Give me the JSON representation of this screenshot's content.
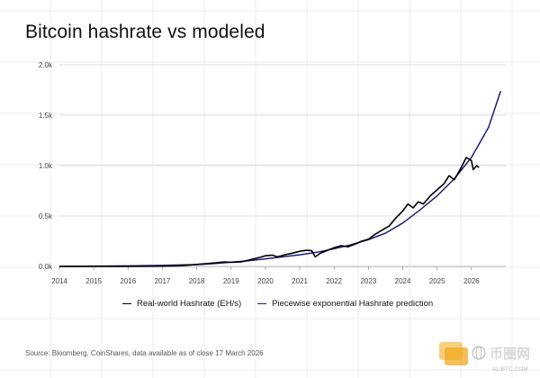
{
  "title": "Bitcoin hashrate vs modeled",
  "source": "Source: Bloomberg, CoinShares, data available as of close 17 March 2026",
  "watermark": {
    "brand": "币圈网",
    "url": "ALIBTC.COM"
  },
  "chart_data": {
    "type": "line",
    "xlim": [
      2014,
      2027
    ],
    "ylim": [
      0,
      2000
    ],
    "xticks": [
      "2014",
      "2015",
      "2016",
      "2017",
      "2018",
      "2019",
      "2020",
      "2021",
      "2022",
      "2023",
      "2024",
      "2025",
      "2026"
    ],
    "yticks": [
      "0.0k",
      "0.5k",
      "1.0k",
      "1.5k",
      "2.0k"
    ],
    "grid": true,
    "legend_position": "bottom",
    "series": [
      {
        "name": "Real-world Hashrate (EH/s)",
        "color": "#000000",
        "points": [
          [
            2014.0,
            0
          ],
          [
            2015.0,
            0.5
          ],
          [
            2016.0,
            1
          ],
          [
            2017.0,
            3
          ],
          [
            2017.5,
            6
          ],
          [
            2018.0,
            20
          ],
          [
            2018.4,
            30
          ],
          [
            2018.8,
            44
          ],
          [
            2019.0,
            40
          ],
          [
            2019.3,
            45
          ],
          [
            2019.6,
            70
          ],
          [
            2019.85,
            90
          ],
          [
            2020.0,
            105
          ],
          [
            2020.2,
            112
          ],
          [
            2020.35,
            95
          ],
          [
            2020.6,
            118
          ],
          [
            2020.8,
            132
          ],
          [
            2021.0,
            150
          ],
          [
            2021.2,
            160
          ],
          [
            2021.35,
            155
          ],
          [
            2021.45,
            95
          ],
          [
            2021.6,
            130
          ],
          [
            2021.85,
            165
          ],
          [
            2022.0,
            185
          ],
          [
            2022.2,
            205
          ],
          [
            2022.4,
            195
          ],
          [
            2022.6,
            220
          ],
          [
            2022.8,
            250
          ],
          [
            2023.0,
            270
          ],
          [
            2023.2,
            320
          ],
          [
            2023.4,
            360
          ],
          [
            2023.6,
            400
          ],
          [
            2023.8,
            480
          ],
          [
            2024.0,
            550
          ],
          [
            2024.15,
            620
          ],
          [
            2024.3,
            580
          ],
          [
            2024.45,
            640
          ],
          [
            2024.6,
            620
          ],
          [
            2024.8,
            700
          ],
          [
            2025.0,
            760
          ],
          [
            2025.2,
            820
          ],
          [
            2025.35,
            900
          ],
          [
            2025.5,
            860
          ],
          [
            2025.7,
            980
          ],
          [
            2025.85,
            1080
          ],
          [
            2026.0,
            1050
          ],
          [
            2026.05,
            960
          ],
          [
            2026.15,
            1000
          ],
          [
            2026.22,
            980
          ]
        ]
      },
      {
        "name": "Piecewise exponential Hashrate prediction",
        "color": "#1e1e7a",
        "points": [
          [
            2014.0,
            0
          ],
          [
            2015.0,
            2
          ],
          [
            2016.0,
            5
          ],
          [
            2017.0,
            10
          ],
          [
            2017.5,
            14
          ],
          [
            2018.0,
            18
          ],
          [
            2018.5,
            28
          ],
          [
            2019.0,
            42
          ],
          [
            2019.5,
            55
          ],
          [
            2020.0,
            75
          ],
          [
            2020.5,
            95
          ],
          [
            2021.0,
            115
          ],
          [
            2021.5,
            140
          ],
          [
            2022.0,
            175
          ],
          [
            2022.5,
            215
          ],
          [
            2023.0,
            265
          ],
          [
            2023.5,
            330
          ],
          [
            2024.0,
            430
          ],
          [
            2024.5,
            560
          ],
          [
            2025.0,
            700
          ],
          [
            2025.5,
            870
          ],
          [
            2026.0,
            1080
          ],
          [
            2026.5,
            1380
          ],
          [
            2026.85,
            1740
          ]
        ]
      }
    ]
  }
}
